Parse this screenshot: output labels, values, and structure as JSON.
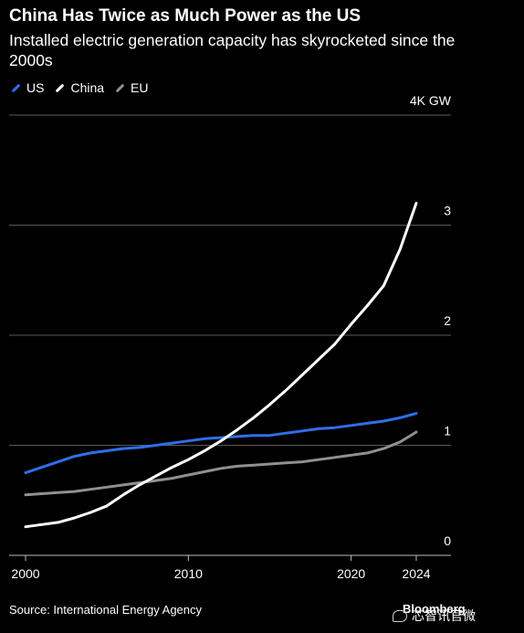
{
  "header": {
    "title": "China Has Twice as Much Power as the US",
    "subtitle": "Installed electric generation capacity has skyrocketed since the 2000s"
  },
  "footer": {
    "source": "Source: International Energy Agency",
    "brand": "Bloomberg",
    "watermark": "芯智讯官微",
    "watermark_icon": "wechat-icon"
  },
  "chart_data": {
    "type": "line",
    "title": "China Has Twice as Much Power as the US",
    "subtitle": "Installed electric generation capacity has skyrocketed since the 2000s",
    "xlabel": "",
    "ylabel": "",
    "xlim": [
      2000,
      2024
    ],
    "ylim": [
      0,
      4
    ],
    "x_ticks": [
      {
        "value": 2000,
        "label": "2000"
      },
      {
        "value": 2010,
        "label": "2010"
      },
      {
        "value": 2020,
        "label": "2020"
      },
      {
        "value": 2024,
        "label": "2024"
      }
    ],
    "y_ticks": [
      {
        "value": 0,
        "label": "0"
      },
      {
        "value": 1,
        "label": "1"
      },
      {
        "value": 2,
        "label": "2"
      },
      {
        "value": 3,
        "label": "3"
      },
      {
        "value": 4,
        "label": "4K GW"
      }
    ],
    "grid": true,
    "legend_position": "top-left",
    "x": [
      2000,
      2001,
      2002,
      2003,
      2004,
      2005,
      2006,
      2007,
      2008,
      2009,
      2010,
      2011,
      2012,
      2013,
      2014,
      2015,
      2016,
      2017,
      2018,
      2019,
      2020,
      2021,
      2022,
      2023,
      2024
    ],
    "series": [
      {
        "name": "US",
        "color": "#2f6fe8",
        "values": [
          0.75,
          0.8,
          0.85,
          0.9,
          0.93,
          0.95,
          0.97,
          0.98,
          1.0,
          1.02,
          1.04,
          1.06,
          1.07,
          1.08,
          1.09,
          1.09,
          1.11,
          1.13,
          1.15,
          1.16,
          1.18,
          1.2,
          1.22,
          1.25,
          1.29
        ]
      },
      {
        "name": "China",
        "color": "#ffffff",
        "values": [
          0.26,
          0.28,
          0.3,
          0.34,
          0.39,
          0.45,
          0.55,
          0.64,
          0.72,
          0.8,
          0.87,
          0.95,
          1.04,
          1.14,
          1.25,
          1.37,
          1.5,
          1.64,
          1.78,
          1.92,
          2.1,
          2.27,
          2.45,
          2.78,
          3.2
        ]
      },
      {
        "name": "EU",
        "color": "#909090",
        "values": [
          0.55,
          0.56,
          0.57,
          0.58,
          0.6,
          0.62,
          0.64,
          0.66,
          0.68,
          0.7,
          0.73,
          0.76,
          0.79,
          0.81,
          0.82,
          0.83,
          0.84,
          0.85,
          0.87,
          0.89,
          0.91,
          0.93,
          0.97,
          1.03,
          1.12
        ]
      }
    ]
  }
}
